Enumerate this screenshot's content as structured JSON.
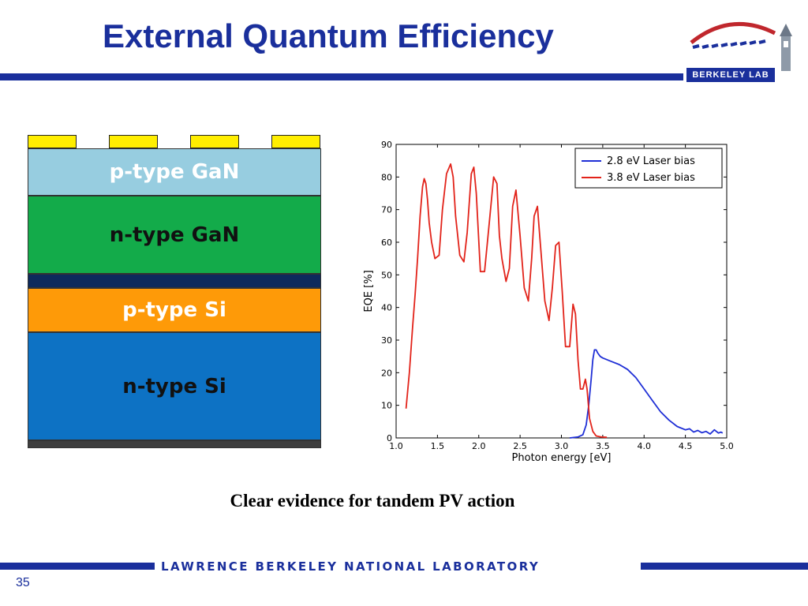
{
  "slide": {
    "title": "External Quantum Efficiency",
    "caption": "Clear evidence for tandem PV action",
    "footer": "LAWRENCE BERKELEY NATIONAL LABORATORY",
    "page_number": "35",
    "logo_text": "BERKELEY LAB"
  },
  "colors": {
    "brand_blue": "#1a2f9c",
    "contact_yellow": "#ffee00",
    "series_2_8": "#1f2fd6",
    "series_3_8": "#e2231a"
  },
  "device_stack": {
    "layers": [
      {
        "label": "p-type GaN",
        "color": "#97cde0",
        "text_color": "#ffffff"
      },
      {
        "label": "n-type GaN",
        "color": "#13ab4a",
        "text_color": "#111111"
      },
      {
        "label": "",
        "color": "#0d2a5c",
        "text_color": "#ffffff"
      },
      {
        "label": "p-type Si",
        "color": "#fe9a08",
        "text_color": "#ffffff"
      },
      {
        "label": "n-type Si",
        "color": "#0d72c4",
        "text_color": "#111111"
      },
      {
        "label": "",
        "color": "#3e3e3e",
        "text_color": "#ffffff"
      }
    ]
  },
  "chart_data": {
    "type": "line",
    "title": "",
    "xlabel": "Photon energy [eV]",
    "ylabel": "EQE [%]",
    "xlim": [
      1.0,
      5.0
    ],
    "ylim": [
      0,
      90
    ],
    "xticks": [
      1.0,
      1.5,
      2.0,
      2.5,
      3.0,
      3.5,
      4.0,
      4.5,
      5.0
    ],
    "xtick_labels": [
      "1.0",
      "1.5",
      "2.0",
      "2.5",
      "3.0",
      "3.5",
      "4.0",
      "4.5",
      "5.0"
    ],
    "yticks": [
      0,
      10,
      20,
      30,
      40,
      50,
      60,
      70,
      80,
      90
    ],
    "ytick_labels": [
      "0",
      "10",
      "20",
      "30",
      "40",
      "50",
      "60",
      "70",
      "80",
      "90"
    ],
    "grid": false,
    "legend_position": "top-right",
    "series": [
      {
        "name": "2.8 eV Laser bias",
        "color": "#1f2fd6",
        "x": [
          3.1,
          3.2,
          3.26,
          3.3,
          3.33,
          3.36,
          3.38,
          3.4,
          3.42,
          3.44,
          3.47,
          3.5,
          3.6,
          3.7,
          3.8,
          3.9,
          4.0,
          4.1,
          4.2,
          4.3,
          4.4,
          4.5,
          4.55,
          4.6,
          4.65,
          4.7,
          4.75,
          4.8,
          4.85,
          4.9,
          4.93,
          4.95
        ],
        "y": [
          0,
          0.3,
          1,
          4,
          10,
          18,
          24,
          27,
          27,
          26,
          25,
          24.5,
          23.5,
          22.5,
          21,
          18.5,
          15,
          11.5,
          8,
          5.5,
          3.5,
          2.5,
          2.8,
          1.8,
          2.3,
          1.6,
          2,
          1.2,
          2.5,
          1.5,
          1.8,
          1.5
        ]
      },
      {
        "name": "3.8 eV Laser bias",
        "color": "#e2231a",
        "x": [
          1.12,
          1.16,
          1.2,
          1.23,
          1.26,
          1.29,
          1.32,
          1.34,
          1.36,
          1.38,
          1.4,
          1.43,
          1.47,
          1.52,
          1.56,
          1.61,
          1.66,
          1.69,
          1.72,
          1.77,
          1.82,
          1.86,
          1.91,
          1.94,
          1.97,
          2.02,
          2.07,
          2.12,
          2.18,
          2.22,
          2.25,
          2.28,
          2.33,
          2.37,
          2.41,
          2.45,
          2.5,
          2.55,
          2.6,
          2.64,
          2.67,
          2.71,
          2.75,
          2.8,
          2.85,
          2.89,
          2.93,
          2.97,
          3.01,
          3.05,
          3.1,
          3.14,
          3.17,
          3.2,
          3.23,
          3.26,
          3.29,
          3.31,
          3.34,
          3.38,
          3.42,
          3.48,
          3.55
        ],
        "y": [
          9,
          20,
          34,
          44,
          55,
          68,
          77,
          79.5,
          78,
          73,
          66,
          60,
          55,
          56,
          70,
          81,
          84,
          80,
          68,
          56,
          54,
          63,
          81,
          83,
          75,
          51,
          51,
          64,
          80,
          78,
          62,
          55,
          48,
          52,
          71,
          76,
          62,
          46,
          42,
          55,
          68,
          71,
          58,
          42,
          36,
          46,
          59,
          60,
          45,
          28,
          28,
          41,
          38,
          24,
          15,
          15,
          18,
          15,
          6,
          2,
          0.6,
          0.3,
          0.2
        ]
      }
    ]
  }
}
